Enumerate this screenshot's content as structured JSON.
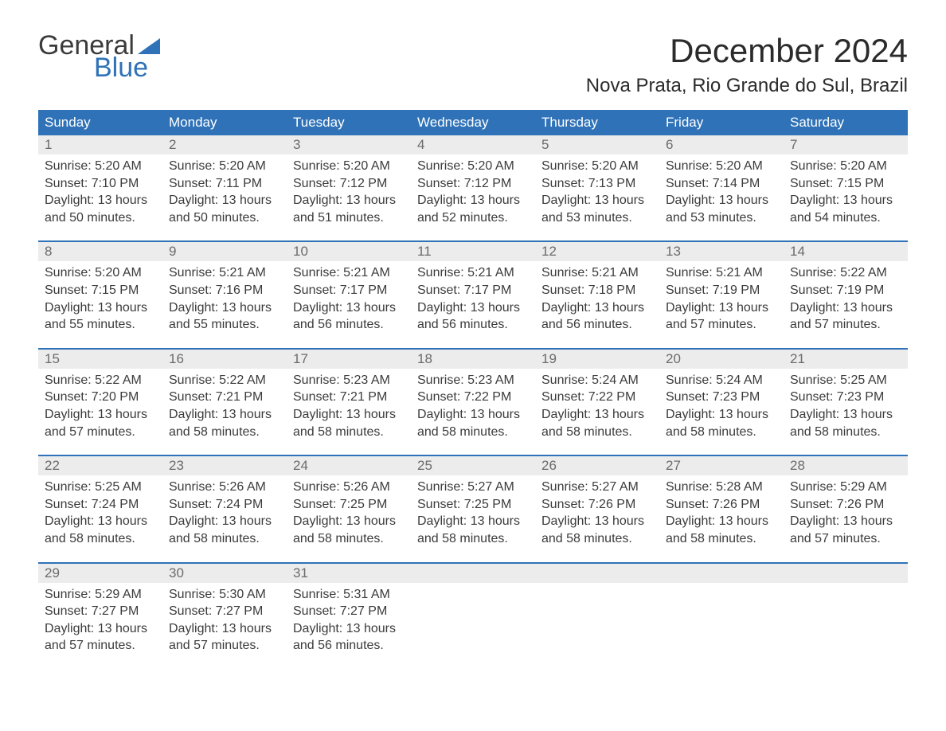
{
  "brand": {
    "general": "General",
    "blue": "Blue",
    "flag_color": "#2f72b8"
  },
  "title": "December 2024",
  "location": "Nova Prata, Rio Grande do Sul, Brazil",
  "colors": {
    "header_bg": "#2f72b8",
    "header_text": "#ffffff",
    "daynum_bg": "#ececec",
    "daynum_text": "#6b6b6b",
    "body_text": "#3b3b3b",
    "week_border": "#2f72b8",
    "page_bg": "#ffffff"
  },
  "dow": [
    "Sunday",
    "Monday",
    "Tuesday",
    "Wednesday",
    "Thursday",
    "Friday",
    "Saturday"
  ],
  "weeks": [
    [
      {
        "n": "1",
        "sr": "Sunrise: 5:20 AM",
        "ss": "Sunset: 7:10 PM",
        "d1": "Daylight: 13 hours",
        "d2": "and 50 minutes."
      },
      {
        "n": "2",
        "sr": "Sunrise: 5:20 AM",
        "ss": "Sunset: 7:11 PM",
        "d1": "Daylight: 13 hours",
        "d2": "and 50 minutes."
      },
      {
        "n": "3",
        "sr": "Sunrise: 5:20 AM",
        "ss": "Sunset: 7:12 PM",
        "d1": "Daylight: 13 hours",
        "d2": "and 51 minutes."
      },
      {
        "n": "4",
        "sr": "Sunrise: 5:20 AM",
        "ss": "Sunset: 7:12 PM",
        "d1": "Daylight: 13 hours",
        "d2": "and 52 minutes."
      },
      {
        "n": "5",
        "sr": "Sunrise: 5:20 AM",
        "ss": "Sunset: 7:13 PM",
        "d1": "Daylight: 13 hours",
        "d2": "and 53 minutes."
      },
      {
        "n": "6",
        "sr": "Sunrise: 5:20 AM",
        "ss": "Sunset: 7:14 PM",
        "d1": "Daylight: 13 hours",
        "d2": "and 53 minutes."
      },
      {
        "n": "7",
        "sr": "Sunrise: 5:20 AM",
        "ss": "Sunset: 7:15 PM",
        "d1": "Daylight: 13 hours",
        "d2": "and 54 minutes."
      }
    ],
    [
      {
        "n": "8",
        "sr": "Sunrise: 5:20 AM",
        "ss": "Sunset: 7:15 PM",
        "d1": "Daylight: 13 hours",
        "d2": "and 55 minutes."
      },
      {
        "n": "9",
        "sr": "Sunrise: 5:21 AM",
        "ss": "Sunset: 7:16 PM",
        "d1": "Daylight: 13 hours",
        "d2": "and 55 minutes."
      },
      {
        "n": "10",
        "sr": "Sunrise: 5:21 AM",
        "ss": "Sunset: 7:17 PM",
        "d1": "Daylight: 13 hours",
        "d2": "and 56 minutes."
      },
      {
        "n": "11",
        "sr": "Sunrise: 5:21 AM",
        "ss": "Sunset: 7:17 PM",
        "d1": "Daylight: 13 hours",
        "d2": "and 56 minutes."
      },
      {
        "n": "12",
        "sr": "Sunrise: 5:21 AM",
        "ss": "Sunset: 7:18 PM",
        "d1": "Daylight: 13 hours",
        "d2": "and 56 minutes."
      },
      {
        "n": "13",
        "sr": "Sunrise: 5:21 AM",
        "ss": "Sunset: 7:19 PM",
        "d1": "Daylight: 13 hours",
        "d2": "and 57 minutes."
      },
      {
        "n": "14",
        "sr": "Sunrise: 5:22 AM",
        "ss": "Sunset: 7:19 PM",
        "d1": "Daylight: 13 hours",
        "d2": "and 57 minutes."
      }
    ],
    [
      {
        "n": "15",
        "sr": "Sunrise: 5:22 AM",
        "ss": "Sunset: 7:20 PM",
        "d1": "Daylight: 13 hours",
        "d2": "and 57 minutes."
      },
      {
        "n": "16",
        "sr": "Sunrise: 5:22 AM",
        "ss": "Sunset: 7:21 PM",
        "d1": "Daylight: 13 hours",
        "d2": "and 58 minutes."
      },
      {
        "n": "17",
        "sr": "Sunrise: 5:23 AM",
        "ss": "Sunset: 7:21 PM",
        "d1": "Daylight: 13 hours",
        "d2": "and 58 minutes."
      },
      {
        "n": "18",
        "sr": "Sunrise: 5:23 AM",
        "ss": "Sunset: 7:22 PM",
        "d1": "Daylight: 13 hours",
        "d2": "and 58 minutes."
      },
      {
        "n": "19",
        "sr": "Sunrise: 5:24 AM",
        "ss": "Sunset: 7:22 PM",
        "d1": "Daylight: 13 hours",
        "d2": "and 58 minutes."
      },
      {
        "n": "20",
        "sr": "Sunrise: 5:24 AM",
        "ss": "Sunset: 7:23 PM",
        "d1": "Daylight: 13 hours",
        "d2": "and 58 minutes."
      },
      {
        "n": "21",
        "sr": "Sunrise: 5:25 AM",
        "ss": "Sunset: 7:23 PM",
        "d1": "Daylight: 13 hours",
        "d2": "and 58 minutes."
      }
    ],
    [
      {
        "n": "22",
        "sr": "Sunrise: 5:25 AM",
        "ss": "Sunset: 7:24 PM",
        "d1": "Daylight: 13 hours",
        "d2": "and 58 minutes."
      },
      {
        "n": "23",
        "sr": "Sunrise: 5:26 AM",
        "ss": "Sunset: 7:24 PM",
        "d1": "Daylight: 13 hours",
        "d2": "and 58 minutes."
      },
      {
        "n": "24",
        "sr": "Sunrise: 5:26 AM",
        "ss": "Sunset: 7:25 PM",
        "d1": "Daylight: 13 hours",
        "d2": "and 58 minutes."
      },
      {
        "n": "25",
        "sr": "Sunrise: 5:27 AM",
        "ss": "Sunset: 7:25 PM",
        "d1": "Daylight: 13 hours",
        "d2": "and 58 minutes."
      },
      {
        "n": "26",
        "sr": "Sunrise: 5:27 AM",
        "ss": "Sunset: 7:26 PM",
        "d1": "Daylight: 13 hours",
        "d2": "and 58 minutes."
      },
      {
        "n": "27",
        "sr": "Sunrise: 5:28 AM",
        "ss": "Sunset: 7:26 PM",
        "d1": "Daylight: 13 hours",
        "d2": "and 58 minutes."
      },
      {
        "n": "28",
        "sr": "Sunrise: 5:29 AM",
        "ss": "Sunset: 7:26 PM",
        "d1": "Daylight: 13 hours",
        "d2": "and 57 minutes."
      }
    ],
    [
      {
        "n": "29",
        "sr": "Sunrise: 5:29 AM",
        "ss": "Sunset: 7:27 PM",
        "d1": "Daylight: 13 hours",
        "d2": "and 57 minutes."
      },
      {
        "n": "30",
        "sr": "Sunrise: 5:30 AM",
        "ss": "Sunset: 7:27 PM",
        "d1": "Daylight: 13 hours",
        "d2": "and 57 minutes."
      },
      {
        "n": "31",
        "sr": "Sunrise: 5:31 AM",
        "ss": "Sunset: 7:27 PM",
        "d1": "Daylight: 13 hours",
        "d2": "and 56 minutes."
      },
      null,
      null,
      null,
      null
    ]
  ]
}
